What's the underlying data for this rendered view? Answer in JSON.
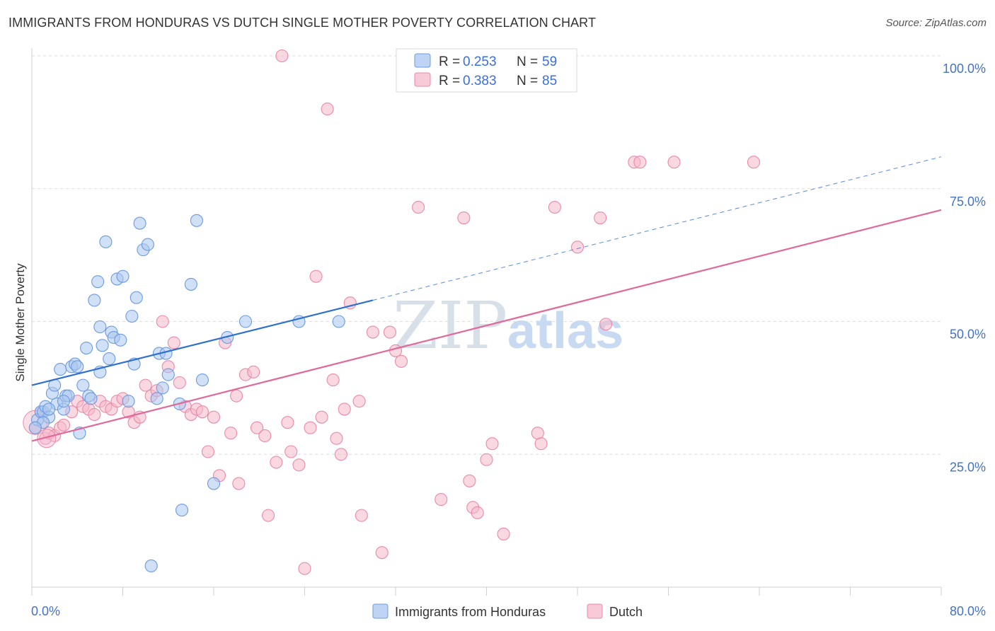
{
  "title": "IMMIGRANTS FROM HONDURAS VS DUTCH SINGLE MOTHER POVERTY CORRELATION CHART",
  "source": "Source: ZipAtlas.com",
  "watermark": {
    "zip": "ZIP",
    "atlas": "atlas"
  },
  "colors": {
    "honduras_fill": "#a9c6f0",
    "honduras_stroke": "#6c9be0",
    "honduras_line": "#2f6fd0",
    "dutch_fill": "#f6b8cb",
    "dutch_stroke": "#e98aa8",
    "dutch_line": "#e0699a",
    "tick_text": "#4472c4",
    "grid": "#dddddd"
  },
  "legend": {
    "rows": [
      {
        "r_label": "R = ",
        "r_value": "0.253",
        "n_label": "N = ",
        "n_value": "59",
        "series": "honduras"
      },
      {
        "r_label": "R = ",
        "r_value": "0.383",
        "n_label": "N = ",
        "n_value": "85",
        "series": "dutch"
      }
    ]
  },
  "bottom_legend": [
    "Immigrants from Honduras",
    "Dutch"
  ],
  "chart_data": {
    "type": "scatter",
    "xlabel": "",
    "ylabel": "Single Mother Poverty",
    "xlim": [
      0,
      80
    ],
    "ylim": [
      0,
      100
    ],
    "x_tick_labels": [
      "0.0%",
      "80.0%"
    ],
    "y_tick_labels": [
      "25.0%",
      "50.0%",
      "75.0%",
      "100.0%"
    ],
    "y_ticks": [
      25,
      50,
      75,
      100
    ],
    "grid": true,
    "legend_position": "top-center",
    "series": [
      {
        "name": "Immigrants from Honduras",
        "trend": {
          "x": [
            0,
            30
          ],
          "y": [
            38.0,
            54.0
          ],
          "dashed_to": [
            80,
            81.0
          ]
        },
        "points": [
          [
            0.5,
            31.5
          ],
          [
            0.8,
            33
          ],
          [
            1.0,
            33
          ],
          [
            1.2,
            34
          ],
          [
            1.5,
            32
          ],
          [
            1.8,
            36.5
          ],
          [
            2.0,
            38
          ],
          [
            2.2,
            34.5
          ],
          [
            2.5,
            41
          ],
          [
            2.8,
            33.5
          ],
          [
            3.0,
            36
          ],
          [
            3.2,
            36
          ],
          [
            3.5,
            41.5
          ],
          [
            3.8,
            42
          ],
          [
            4.0,
            41.5
          ],
          [
            4.2,
            29
          ],
          [
            4.5,
            38
          ],
          [
            4.8,
            45
          ],
          [
            5.0,
            36
          ],
          [
            5.2,
            35.5
          ],
          [
            5.5,
            54
          ],
          [
            5.8,
            57.5
          ],
          [
            6.0,
            40.5
          ],
          [
            6.2,
            45.5
          ],
          [
            6.5,
            65
          ],
          [
            6.8,
            43
          ],
          [
            7.0,
            48
          ],
          [
            7.2,
            47
          ],
          [
            7.5,
            58
          ],
          [
            7.8,
            46.5
          ],
          [
            8.0,
            58.5
          ],
          [
            8.5,
            35
          ],
          [
            8.8,
            51
          ],
          [
            9.0,
            42
          ],
          [
            9.2,
            54.5
          ],
          [
            9.5,
            68.5
          ],
          [
            9.8,
            63.5
          ],
          [
            10.2,
            64.5
          ],
          [
            10.5,
            4
          ],
          [
            11.0,
            35.5
          ],
          [
            11.2,
            44
          ],
          [
            11.5,
            37.5
          ],
          [
            11.8,
            44
          ],
          [
            12.0,
            40
          ],
          [
            13.2,
            14.5
          ],
          [
            13.0,
            34.5
          ],
          [
            14.0,
            57
          ],
          [
            14.5,
            69
          ],
          [
            15.0,
            39
          ],
          [
            16.0,
            19.5
          ],
          [
            17.2,
            47
          ],
          [
            18.8,
            50
          ],
          [
            23.5,
            50
          ],
          [
            27.0,
            50
          ],
          [
            1.0,
            31
          ],
          [
            1.5,
            33.5
          ],
          [
            2.8,
            35
          ],
          [
            0.3,
            30
          ],
          [
            6.0,
            49
          ]
        ]
      },
      {
        "name": "Dutch",
        "trend": {
          "x": [
            0,
            80
          ],
          "y": [
            27.5,
            71.0
          ]
        },
        "points": [
          [
            0.3,
            30
          ],
          [
            0.8,
            33
          ],
          [
            1.2,
            28
          ],
          [
            1.5,
            29
          ],
          [
            2.0,
            28.5
          ],
          [
            2.5,
            30
          ],
          [
            2.8,
            30.5
          ],
          [
            3.5,
            33
          ],
          [
            4.0,
            35
          ],
          [
            4.5,
            34
          ],
          [
            5.0,
            33.5
          ],
          [
            5.5,
            32.5
          ],
          [
            6.0,
            35
          ],
          [
            6.5,
            34
          ],
          [
            7.0,
            33.5
          ],
          [
            7.5,
            35
          ],
          [
            8.0,
            35.5
          ],
          [
            8.5,
            33
          ],
          [
            9.0,
            31
          ],
          [
            9.5,
            32
          ],
          [
            10.0,
            38
          ],
          [
            10.5,
            36
          ],
          [
            11.0,
            37
          ],
          [
            11.5,
            50
          ],
          [
            12.0,
            41.5
          ],
          [
            12.5,
            46
          ],
          [
            13.0,
            38.5
          ],
          [
            13.5,
            34
          ],
          [
            14.0,
            32.5
          ],
          [
            14.5,
            33.5
          ],
          [
            15.0,
            33
          ],
          [
            15.5,
            25.5
          ],
          [
            16.0,
            32
          ],
          [
            16.5,
            21
          ],
          [
            17.0,
            46
          ],
          [
            17.5,
            29
          ],
          [
            18.0,
            36
          ],
          [
            18.2,
            19.5
          ],
          [
            18.8,
            40
          ],
          [
            19.5,
            40.5
          ],
          [
            19.8,
            30
          ],
          [
            20.5,
            28.5
          ],
          [
            20.8,
            13.5
          ],
          [
            21.5,
            23.5
          ],
          [
            22.0,
            100
          ],
          [
            22.5,
            31
          ],
          [
            22.8,
            25.5
          ],
          [
            23.5,
            23
          ],
          [
            24.0,
            3.5
          ],
          [
            24.5,
            30
          ],
          [
            25.0,
            58.5
          ],
          [
            25.5,
            32
          ],
          [
            26.0,
            90
          ],
          [
            26.5,
            39
          ],
          [
            26.8,
            28
          ],
          [
            27.2,
            25
          ],
          [
            27.5,
            33.5
          ],
          [
            28.0,
            53.5
          ],
          [
            28.8,
            35
          ],
          [
            29.0,
            13.5
          ],
          [
            30.0,
            48
          ],
          [
            30.8,
            6.5
          ],
          [
            31.5,
            48
          ],
          [
            32.0,
            44.5
          ],
          [
            32.5,
            42.5
          ],
          [
            34.0,
            71.5
          ],
          [
            34.5,
            100
          ],
          [
            36.0,
            16.5
          ],
          [
            38.0,
            69.5
          ],
          [
            38.5,
            20
          ],
          [
            38.8,
            15
          ],
          [
            39.2,
            14
          ],
          [
            40.0,
            24
          ],
          [
            40.5,
            27
          ],
          [
            41.5,
            10
          ],
          [
            44.5,
            29
          ],
          [
            44.8,
            27
          ],
          [
            46.0,
            71.5
          ],
          [
            48.0,
            64
          ],
          [
            50.0,
            69.5
          ],
          [
            50.5,
            49.5
          ],
          [
            53.0,
            80
          ],
          [
            53.5,
            80
          ],
          [
            56.5,
            80
          ],
          [
            63.5,
            80
          ]
        ]
      }
    ]
  }
}
